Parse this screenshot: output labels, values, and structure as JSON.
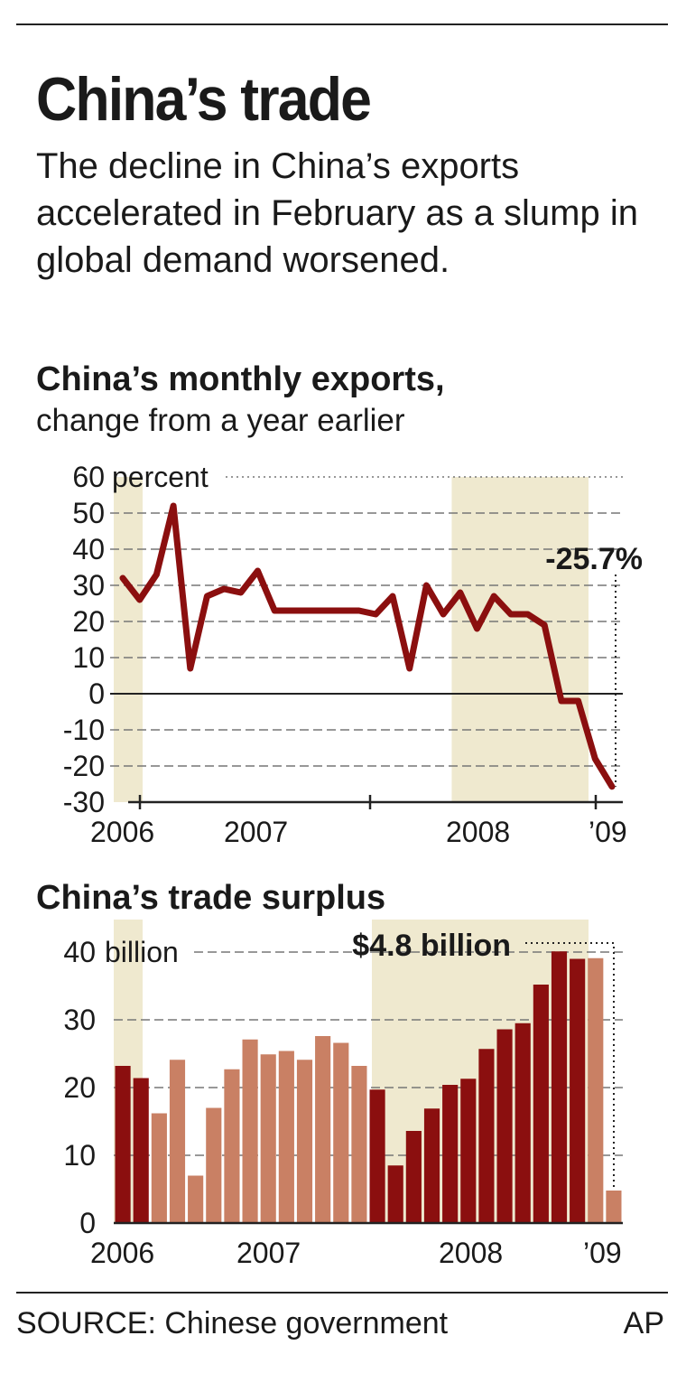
{
  "headline": "China’s trade",
  "deck": "The decline in China’s exports accelerated in February as a slump in global demand worsened.",
  "source": "SOURCE: Chinese government",
  "credit": "AP",
  "colors": {
    "recession_band": "#efe9cf",
    "line": "#8b0f0f",
    "bar_dark": "#8b0f0f",
    "bar_light": "#c98064",
    "grid": "#777777"
  },
  "chart_data": [
    {
      "type": "line",
      "title": "China’s monthly exports,",
      "subtitle": "change from a year earlier",
      "ylabel_unit": "percent",
      "ylim": [
        -30,
        60
      ],
      "yticks": [
        60,
        50,
        40,
        30,
        20,
        10,
        0,
        -10,
        -20,
        -30
      ],
      "xtick_labels": [
        "2006",
        "2007",
        "2008",
        "’09"
      ],
      "x_start": "2006-01",
      "x_end": "2009-02",
      "shaded_periods": [
        [
          "2006-01",
          "2006-02"
        ],
        [
          "2007-09",
          "2009-01"
        ]
      ],
      "values": [
        32,
        26,
        33,
        52,
        7,
        27,
        29,
        28,
        34,
        23,
        23,
        23,
        23,
        23,
        23,
        22,
        27,
        7,
        30,
        22,
        28,
        18,
        27,
        22,
        22,
        19,
        -2,
        -2,
        -18,
        -25.7
      ],
      "annotation": "-25.7%",
      "grid": true
    },
    {
      "type": "bar",
      "title": "China’s trade surplus",
      "ylabel_unit": "billion",
      "ylim": [
        0,
        40
      ],
      "yticks": [
        40,
        30,
        20,
        10,
        0
      ],
      "xtick_labels": [
        "2006",
        "2007",
        "2008",
        "’09"
      ],
      "shaded_periods": [
        [
          "2006-01",
          "2006-02"
        ],
        [
          "2007-09",
          "2009-01"
        ]
      ],
      "values": [
        23.2,
        21.4,
        16.2,
        24.1,
        7.0,
        17.0,
        22.7,
        27.1,
        24.9,
        25.4,
        24.1,
        27.6,
        26.6,
        23.2,
        19.7,
        8.5,
        13.6,
        16.9,
        20.4,
        21.3,
        25.7,
        28.6,
        29.5,
        35.2,
        40.1,
        39.0,
        39.1,
        4.8
      ],
      "dark": [
        true,
        true,
        false,
        false,
        false,
        false,
        false,
        false,
        false,
        false,
        false,
        false,
        false,
        false,
        true,
        true,
        true,
        true,
        true,
        true,
        true,
        true,
        true,
        true,
        true,
        true,
        false,
        false
      ],
      "annotation": "$4.8 billion",
      "grid": true
    }
  ]
}
